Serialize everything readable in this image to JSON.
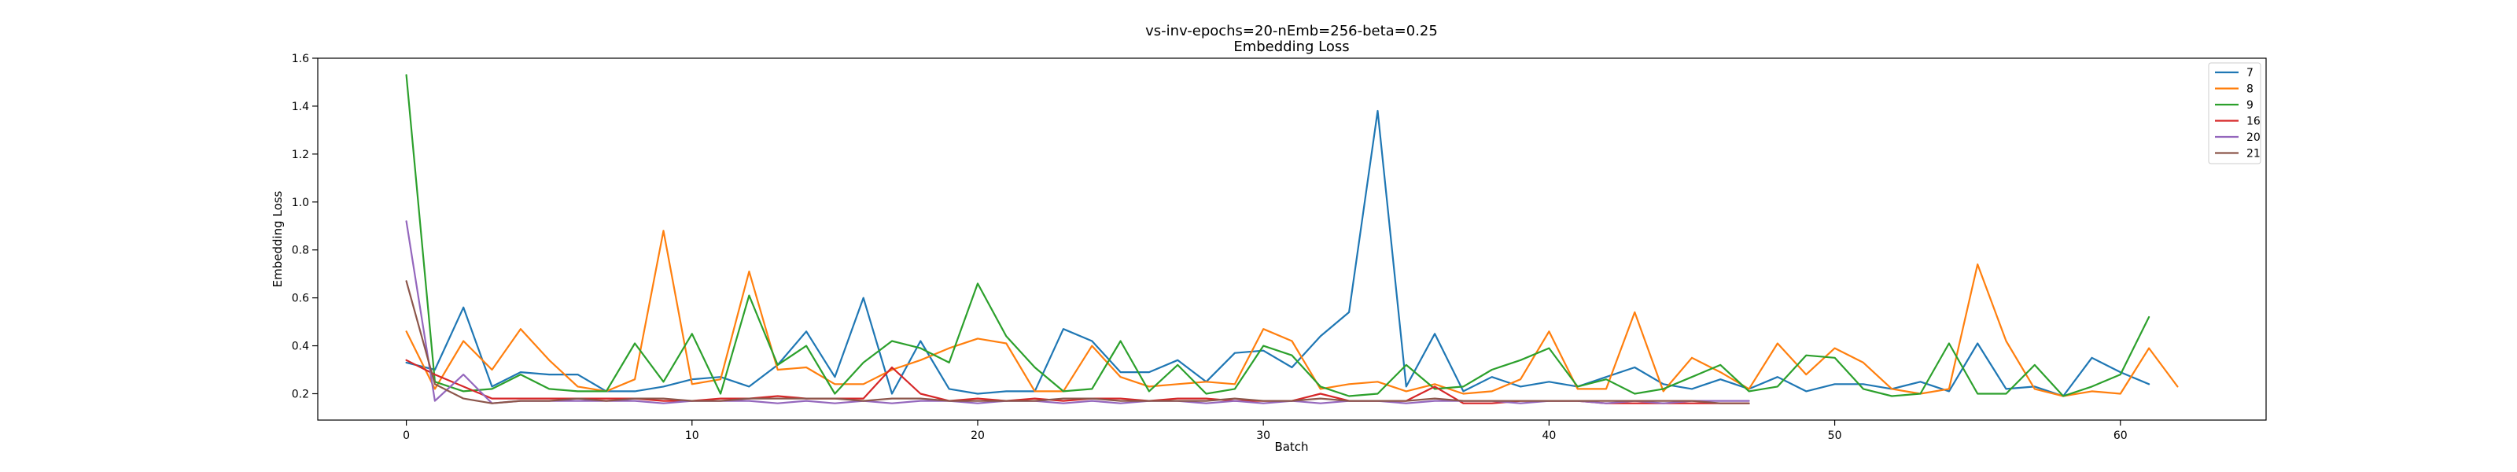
{
  "chart_data": {
    "type": "line",
    "title": "vs-inv-epochs=20-nEmb=256-beta=0.25",
    "subtitle": "Embedding Loss",
    "xlabel": "Batch",
    "ylabel": "Embedding Loss",
    "xlim": [
      -3.1,
      65.1
    ],
    "ylim": [
      0.09,
      1.6
    ],
    "xticks": [
      0,
      10,
      20,
      30,
      40,
      50,
      60
    ],
    "yticks": [
      0.2,
      0.4,
      0.6,
      0.8,
      1.0,
      1.2,
      1.4,
      1.6
    ],
    "ytick_labels": [
      "0.2",
      "0.4",
      "0.6",
      "0.8",
      "1.0",
      "1.2",
      "1.4",
      "1.6"
    ],
    "grid": false,
    "legend_position": "top-right",
    "series": [
      {
        "name": "7",
        "color": "#1f77b4",
        "values": [
          0.33,
          0.3,
          0.56,
          0.23,
          0.29,
          0.28,
          0.28,
          0.21,
          0.21,
          0.23,
          0.26,
          0.27,
          0.23,
          0.32,
          0.46,
          0.27,
          0.6,
          0.2,
          0.42,
          0.22,
          0.2,
          0.21,
          0.21,
          0.47,
          0.42,
          0.29,
          0.29,
          0.34,
          0.25,
          0.37,
          0.38,
          0.31,
          0.44,
          0.54,
          1.38,
          0.23,
          0.45,
          0.21,
          0.27,
          0.23,
          0.25,
          0.23,
          0.27,
          0.31,
          0.24,
          0.22,
          0.26,
          0.22,
          0.27,
          0.21,
          0.24,
          0.24,
          0.22,
          0.25,
          0.21,
          0.41,
          0.22,
          0.23,
          0.19,
          0.35,
          0.29,
          0.24
        ]
      },
      {
        "name": "8",
        "color": "#ff7f0e",
        "values": [
          0.46,
          0.22,
          0.42,
          0.3,
          0.47,
          0.34,
          0.23,
          0.21,
          0.26,
          0.88,
          0.24,
          0.26,
          0.71,
          0.3,
          0.31,
          0.24,
          0.24,
          0.3,
          0.34,
          0.39,
          0.43,
          0.41,
          0.21,
          0.21,
          0.4,
          0.27,
          0.23,
          0.24,
          0.25,
          0.24,
          0.47,
          0.42,
          0.22,
          0.24,
          0.25,
          0.21,
          0.24,
          0.2,
          0.21,
          0.26,
          0.46,
          0.22,
          0.22,
          0.54,
          0.21,
          0.35,
          0.29,
          0.22,
          0.41,
          0.28,
          0.39,
          0.33,
          0.22,
          0.2,
          0.22,
          0.74,
          0.42,
          0.22,
          0.19,
          0.21,
          0.2,
          0.39,
          0.23
        ]
      },
      {
        "name": "9",
        "color": "#2ca02c",
        "values": [
          1.53,
          0.25,
          0.21,
          0.22,
          0.28,
          0.22,
          0.21,
          0.21,
          0.41,
          0.25,
          0.45,
          0.2,
          0.61,
          0.32,
          0.4,
          0.2,
          0.33,
          0.42,
          0.39,
          0.33,
          0.66,
          0.44,
          0.31,
          0.21,
          0.22,
          0.42,
          0.21,
          0.32,
          0.2,
          0.22,
          0.4,
          0.36,
          0.23,
          0.19,
          0.2,
          0.32,
          0.22,
          0.23,
          0.3,
          0.34,
          0.39,
          0.23,
          0.26,
          0.2,
          0.22,
          0.27,
          0.32,
          0.21,
          0.23,
          0.36,
          0.35,
          0.22,
          0.19,
          0.2,
          0.41,
          0.2,
          0.2,
          0.32,
          0.19,
          0.23,
          0.28,
          0.52
        ]
      },
      {
        "name": "16",
        "color": "#d62728",
        "values": [
          0.34,
          0.28,
          0.23,
          0.18,
          0.18,
          0.18,
          0.18,
          0.18,
          0.18,
          0.17,
          0.17,
          0.18,
          0.18,
          0.19,
          0.18,
          0.18,
          0.18,
          0.31,
          0.2,
          0.17,
          0.18,
          0.17,
          0.18,
          0.17,
          0.18,
          0.18,
          0.17,
          0.18,
          0.18,
          0.17,
          0.17,
          0.17,
          0.2,
          0.17,
          0.17,
          0.17,
          0.23,
          0.16,
          0.16,
          0.17,
          0.17,
          0.17,
          0.16,
          0.16,
          0.16,
          0.16,
          0.16,
          0.16
        ]
      },
      {
        "name": "20",
        "color": "#9467bd",
        "values": [
          0.92,
          0.17,
          0.28,
          0.16,
          0.17,
          0.17,
          0.17,
          0.17,
          0.17,
          0.16,
          0.17,
          0.17,
          0.17,
          0.16,
          0.17,
          0.16,
          0.17,
          0.16,
          0.17,
          0.17,
          0.16,
          0.17,
          0.17,
          0.16,
          0.17,
          0.16,
          0.17,
          0.17,
          0.16,
          0.17,
          0.16,
          0.17,
          0.16,
          0.17,
          0.17,
          0.16,
          0.17,
          0.17,
          0.17,
          0.16,
          0.17,
          0.17,
          0.16,
          0.17,
          0.16,
          0.17,
          0.17,
          0.17
        ]
      },
      {
        "name": "21",
        "color": "#8c564b",
        "values": [
          0.67,
          0.24,
          0.18,
          0.16,
          0.17,
          0.17,
          0.18,
          0.17,
          0.18,
          0.18,
          0.17,
          0.17,
          0.18,
          0.18,
          0.18,
          0.18,
          0.17,
          0.18,
          0.18,
          0.17,
          0.17,
          0.17,
          0.17,
          0.18,
          0.18,
          0.17,
          0.17,
          0.17,
          0.17,
          0.18,
          0.17,
          0.17,
          0.18,
          0.17,
          0.17,
          0.17,
          0.18,
          0.17,
          0.17,
          0.17,
          0.17,
          0.17,
          0.17,
          0.17,
          0.17,
          0.17,
          0.16,
          0.16
        ]
      }
    ]
  }
}
